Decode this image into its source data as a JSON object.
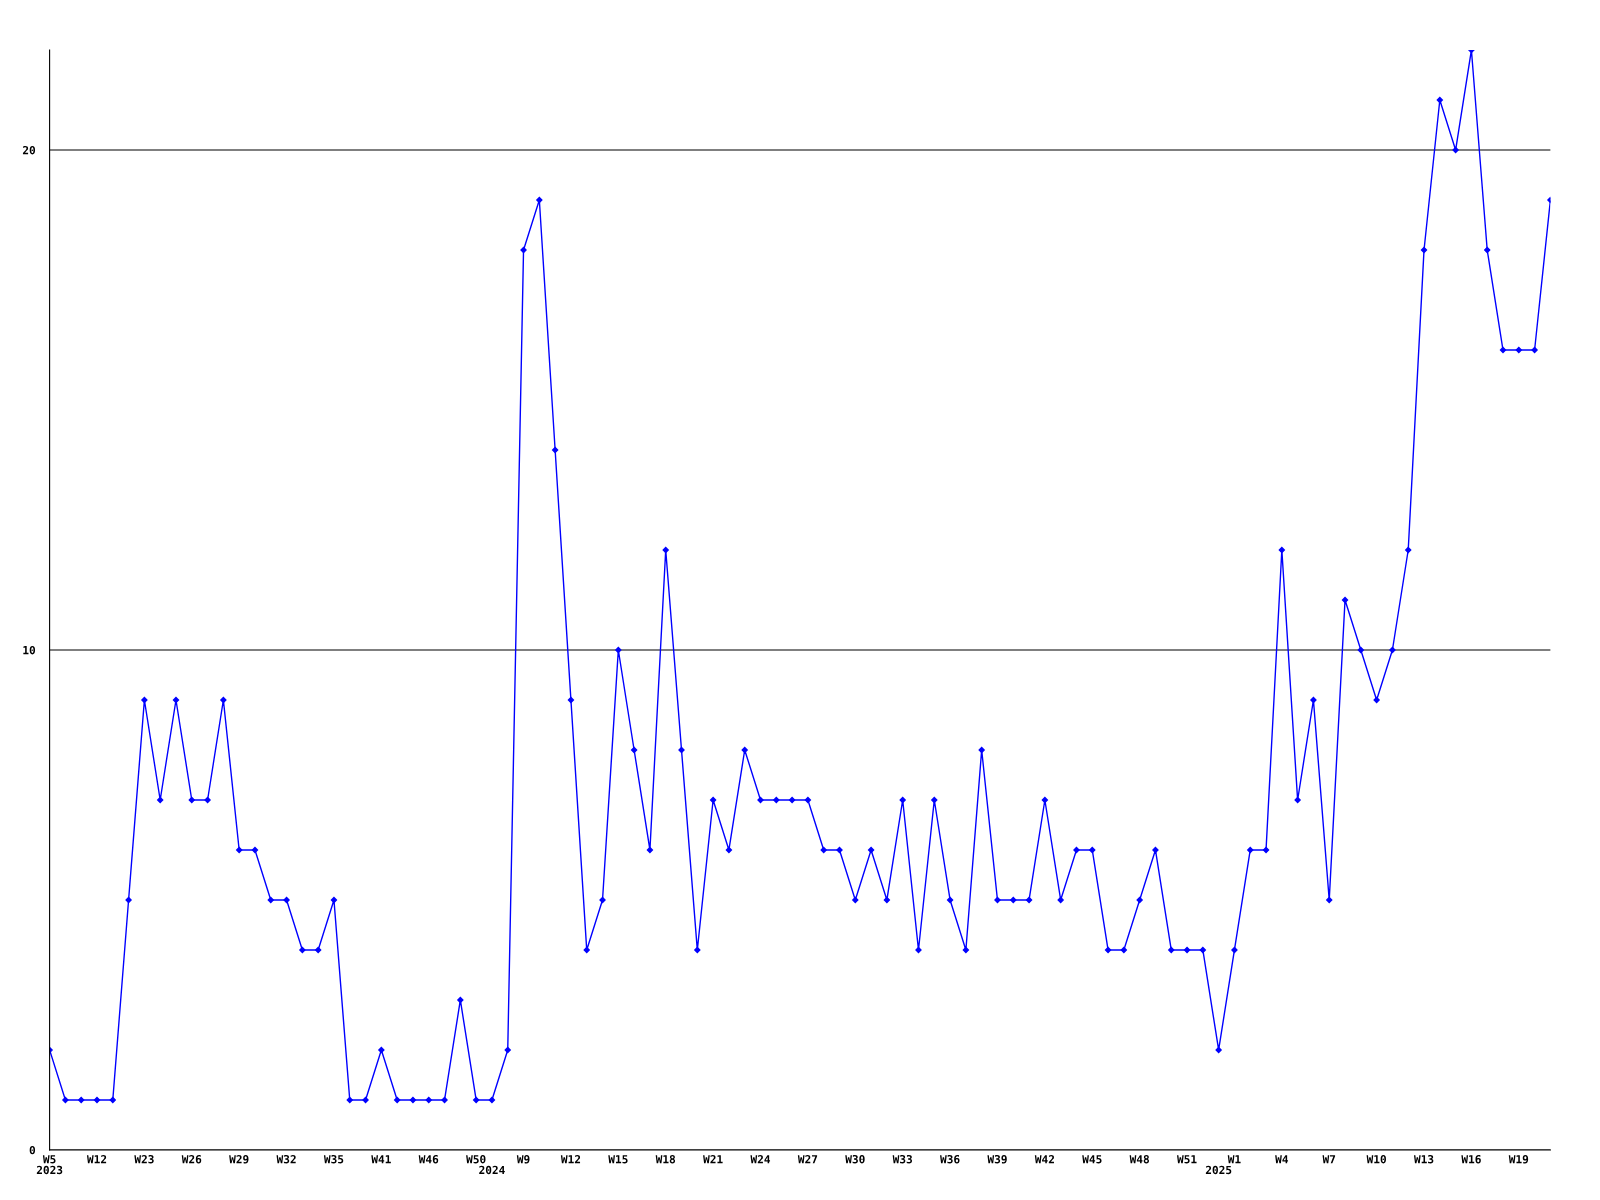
{
  "chart_data": {
    "type": "line",
    "categories": [
      "W5\n2023",
      null,
      null,
      "W12",
      null,
      null,
      "W23",
      null,
      null,
      "W26",
      null,
      null,
      "W29",
      null,
      null,
      "W32",
      null,
      null,
      "W35",
      null,
      null,
      "W41",
      null,
      null,
      "W46",
      null,
      null,
      "W50",
      "\n2024",
      null,
      "W9",
      null,
      null,
      "W12",
      null,
      null,
      "W15",
      null,
      null,
      "W18",
      null,
      null,
      "W21",
      null,
      null,
      "W24",
      null,
      null,
      "W27",
      null,
      null,
      "W30",
      null,
      null,
      "W33",
      null,
      null,
      "W36",
      null,
      null,
      "W39",
      null,
      null,
      "W42",
      null,
      null,
      "W45",
      null,
      null,
      "W48",
      null,
      null,
      "W51",
      null,
      "\n2025",
      "W1",
      null,
      null,
      "W4",
      null,
      null,
      "W7",
      null,
      null,
      "W10",
      null,
      null,
      "W13",
      null,
      null,
      "W16",
      null,
      null,
      "W19",
      null,
      null
    ],
    "series": [
      {
        "color": "#0000ff",
        "values": [
          2,
          1,
          1,
          1,
          1,
          5,
          9,
          7,
          9,
          7,
          7,
          9,
          6,
          6,
          5,
          5,
          4,
          4,
          5,
          1,
          1,
          2,
          1,
          1,
          1,
          1,
          3,
          1,
          1,
          2,
          18,
          19,
          14,
          9,
          4,
          5,
          10,
          8,
          6,
          12,
          8,
          4,
          7,
          6,
          8,
          7,
          7,
          7,
          7,
          6,
          6,
          5,
          6,
          5,
          7,
          4,
          7,
          5,
          4,
          8,
          5,
          5,
          5,
          7,
          5,
          6,
          6,
          4,
          4,
          5,
          6,
          4,
          4,
          4,
          2,
          4,
          6,
          6,
          12,
          7,
          9,
          5,
          11,
          10,
          9,
          10,
          12,
          18,
          21,
          20,
          22,
          18,
          16,
          16,
          16,
          19
        ]
      }
    ],
    "ylim": [
      0,
      22
    ],
    "yticks": [
      0,
      10,
      20
    ],
    "grid": "y",
    "marker": "diamond",
    "line_style": "solid"
  }
}
